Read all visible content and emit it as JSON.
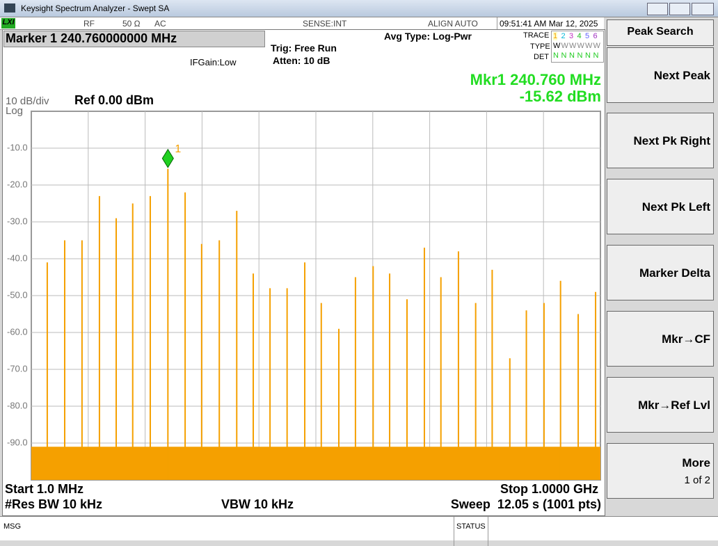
{
  "window": {
    "title": "Keysight Spectrum Analyzer - Swept SA",
    "logo": "LXI"
  },
  "status_bar": {
    "rf": "RF",
    "impedance": "50 Ω",
    "coupling": "AC",
    "sense": "SENSE:INT",
    "align": "ALIGN AUTO",
    "datetime": "09:51:41 AM Mar 12, 2025"
  },
  "header": {
    "marker_title": "Marker 1 240.760000000 MHz",
    "ifgain": "IFGain:Low",
    "trig": "Trig: Free Run",
    "atten": "Atten: 10 dB",
    "avg_type": "Avg Type: Log-Pwr",
    "trace_label": "TRACE",
    "type_label": "TYPE",
    "det_label": "DET",
    "traces": [
      {
        "num": "1",
        "color": "#f5a000",
        "type": "W",
        "det": "N"
      },
      {
        "num": "2",
        "color": "#00b8d8",
        "type": "W",
        "det": "N"
      },
      {
        "num": "3",
        "color": "#c030c0",
        "type": "W",
        "det": "N"
      },
      {
        "num": "4",
        "color": "#20c020",
        "type": "W",
        "det": "N"
      },
      {
        "num": "5",
        "color": "#6060ff",
        "type": "W",
        "det": "N"
      },
      {
        "num": "6",
        "color": "#a030c0",
        "type": "W",
        "det": "N"
      }
    ],
    "mkr_freq": "Mkr1 240.760 MHz",
    "mkr_amp": "-15.62 dBm",
    "scale": "10 dB/div",
    "scale_type": "Log",
    "ref": "Ref 0.00 dBm"
  },
  "chart_data": {
    "type": "spectrum",
    "xlim": [
      1,
      1000
    ],
    "ylim": [
      -100,
      0
    ],
    "x_divisions": 10,
    "yticks": [
      {
        "value": -10,
        "label": "-10.0"
      },
      {
        "value": -20,
        "label": "-20.0"
      },
      {
        "value": -30,
        "label": "-30.0"
      },
      {
        "value": -40,
        "label": "-40.0"
      },
      {
        "value": -50,
        "label": "-50.0"
      },
      {
        "value": -60,
        "label": "-60.0"
      },
      {
        "value": -70,
        "label": "-70.0"
      },
      {
        "value": -80,
        "label": "-80.0"
      },
      {
        "value": -90,
        "label": "-90.0"
      }
    ],
    "grid": true,
    "color": "#f5a000",
    "noise_floor": -91,
    "peaks": {
      "x": [
        29,
        59.6,
        90,
        120.6,
        150,
        179,
        209.8,
        240.76,
        271,
        300,
        331,
        361.6,
        390.6,
        420,
        450,
        481,
        510,
        540.8,
        570,
        601,
        630,
        660.5,
        691,
        720,
        750.8,
        781,
        810,
        841,
        870,
        901,
        930,
        961,
        991.5
      ],
      "values": [
        -41,
        -35,
        -35,
        -23,
        -29,
        -25,
        -23,
        -15.62,
        -22,
        -36,
        -35,
        -27,
        -44,
        -48,
        -48,
        -41,
        -52,
        -59,
        -45,
        -42,
        -44,
        -51,
        -37,
        -45,
        -38,
        -52,
        -43,
        -67,
        -54,
        -52,
        -46,
        -55,
        -49
      ]
    },
    "marker": {
      "x": 240.76,
      "y": -15.62,
      "label": "1",
      "color": "#20d020"
    }
  },
  "footer": {
    "start": "Start 1.0 MHz",
    "stop": "Stop 1.0000 GHz",
    "rbw": "#Res BW 10 kHz",
    "vbw": "VBW 10 kHz",
    "sweep": "Sweep  12.05 s (1001 pts)",
    "msg": "MSG",
    "status": "STATUS"
  },
  "softkeys": {
    "title": "Peak Search",
    "keys": [
      "Next Peak",
      "Next Pk Right",
      "Next Pk Left",
      "Marker Delta",
      "Mkr→CF",
      "Mkr→Ref Lvl",
      "More"
    ],
    "more_sub": "1 of 2"
  }
}
